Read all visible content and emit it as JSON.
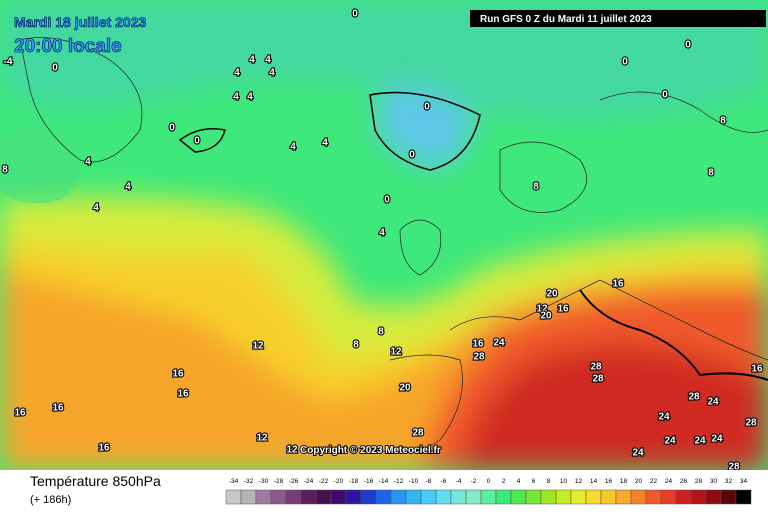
{
  "header": {
    "date": "Mardi 18 juillet 2023",
    "time": "20:00 locale",
    "run": "Run GFS 0 Z du Mardi 11 juillet 2023"
  },
  "copyright": "Copyright © 2023 Meteociel.fr",
  "footer": {
    "title": "Température 850hPa",
    "subtitle": "(+ 186h)"
  },
  "scale": {
    "ticks": [
      -34,
      -32,
      -30,
      -28,
      -26,
      -24,
      -22,
      -20,
      -18,
      -16,
      -14,
      -12,
      -10,
      -8,
      -6,
      -4,
      -2,
      0,
      2,
      4,
      6,
      8,
      10,
      12,
      14,
      16,
      18,
      20,
      22,
      24,
      26,
      28,
      30,
      32,
      34
    ],
    "colors": [
      "#c8c8c8",
      "#b4b4b4",
      "#a07aa0",
      "#8c5a8c",
      "#783c78",
      "#5a1e5a",
      "#46104e",
      "#3c0a6e",
      "#2a14a0",
      "#1e3cc8",
      "#1e64e6",
      "#2896f0",
      "#32b4f5",
      "#46cdf5",
      "#64dcf0",
      "#78e6dc",
      "#82ebc8",
      "#5af0a0",
      "#3ce878",
      "#50e650",
      "#78e632",
      "#a0e628",
      "#c8eb28",
      "#e6eb2d",
      "#f5dc2d",
      "#f7c82a",
      "#f7aa2a",
      "#f5822a",
      "#f05a28",
      "#e63c28",
      "#d21e23",
      "#b41419",
      "#8c0a10",
      "#5a0508",
      "#000000"
    ]
  },
  "contour_labels": [
    0,
    0,
    0,
    0,
    -4,
    0,
    4,
    4,
    4,
    4,
    4,
    4,
    0,
    0,
    0,
    0,
    4,
    4,
    0,
    4,
    8,
    8,
    4,
    4,
    4,
    8,
    8,
    8,
    8,
    12,
    16,
    16,
    16,
    16,
    16,
    12,
    12,
    12,
    16,
    24,
    28,
    20,
    12,
    16,
    20,
    16,
    20,
    28,
    28,
    28,
    16,
    28,
    24,
    24,
    24,
    24,
    24,
    28,
    24,
    28
  ]
}
